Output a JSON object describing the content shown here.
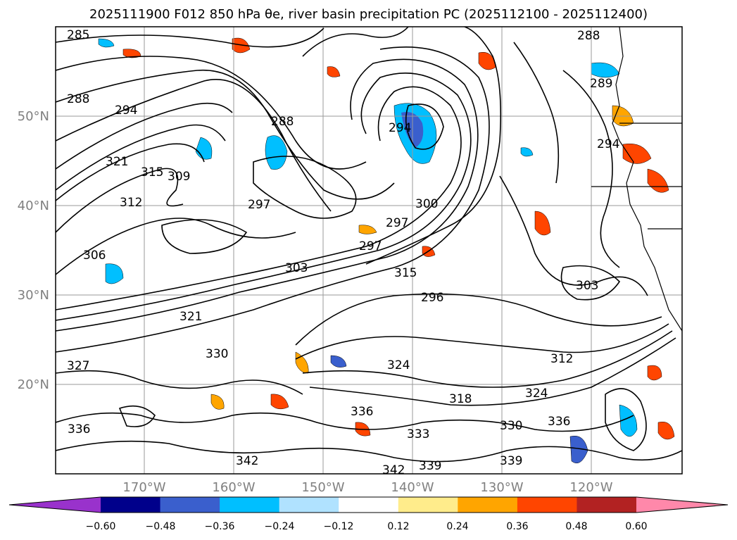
{
  "title": "2025111900 F012 850 hPa θe, river basin precipitation PC (2025112100 - 2025112400)",
  "map": {
    "lat_labels": [
      "50°N",
      "40°N",
      "30°N",
      "20°N"
    ],
    "lon_labels": [
      "170°W",
      "160°W",
      "150°W",
      "140°W",
      "130°W",
      "120°W"
    ],
    "contour_labels": [
      "285",
      "288",
      "288",
      "294",
      "294",
      "297",
      "297",
      "297",
      "300",
      "303",
      "306",
      "309",
      "312",
      "315",
      "315",
      "321",
      "321",
      "327",
      "330",
      "336",
      "336",
      "339",
      "342",
      "333",
      "330",
      "324",
      "318",
      "312",
      "303",
      "296",
      "324",
      "288",
      "289",
      "294",
      "339",
      "342",
      "336"
    ],
    "colors": {
      "grid": "#9a9a9a",
      "axis_text": "#808080",
      "contour": "#000000"
    }
  },
  "colorbar": {
    "ticks": [
      "−0.60",
      "−0.48",
      "−0.36",
      "−0.24",
      "−0.12",
      "0.12",
      "0.24",
      "0.36",
      "0.48",
      "0.60"
    ],
    "colors": [
      "#9932cc",
      "#00008b",
      "#3a5fcd",
      "#00bfff",
      "#b0e2ff",
      "#ffffff",
      "#ffec8b",
      "#ffa500",
      "#ff4500",
      "#b22222",
      "#ff88aa"
    ]
  }
}
